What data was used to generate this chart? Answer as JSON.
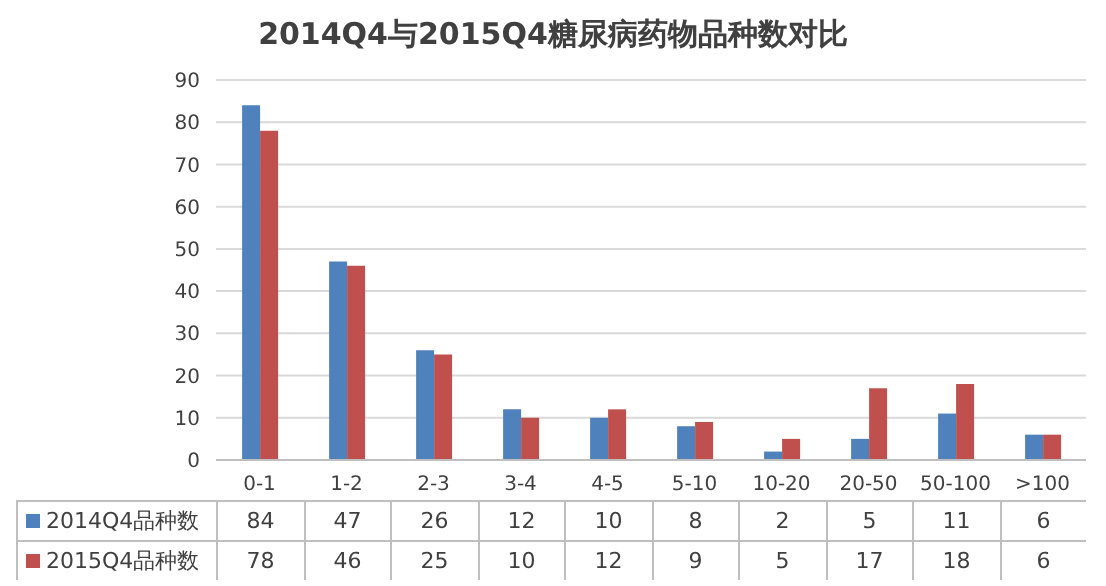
{
  "chart_data": {
    "type": "bar",
    "title": "2014Q4与2015Q4糖尿病药物品种数对比",
    "categories": [
      "0-1",
      "1-2",
      "2-3",
      "3-4",
      "4-5",
      "5-10",
      "10-20",
      "20-50",
      "50-100",
      ">100"
    ],
    "series": [
      {
        "name": "2014Q4品种数",
        "color": "#4f81bd",
        "values": [
          84,
          47,
          26,
          12,
          10,
          8,
          2,
          5,
          11,
          6
        ]
      },
      {
        "name": "2015Q4品种数",
        "color": "#c0504d",
        "values": [
          78,
          46,
          25,
          10,
          12,
          9,
          5,
          17,
          18,
          6
        ]
      }
    ],
    "ylim": [
      0,
      90
    ],
    "yticks": [
      0,
      10,
      20,
      30,
      40,
      50,
      60,
      70,
      80,
      90
    ],
    "grid": "y",
    "legend": "bottom",
    "data_labels": true
  }
}
